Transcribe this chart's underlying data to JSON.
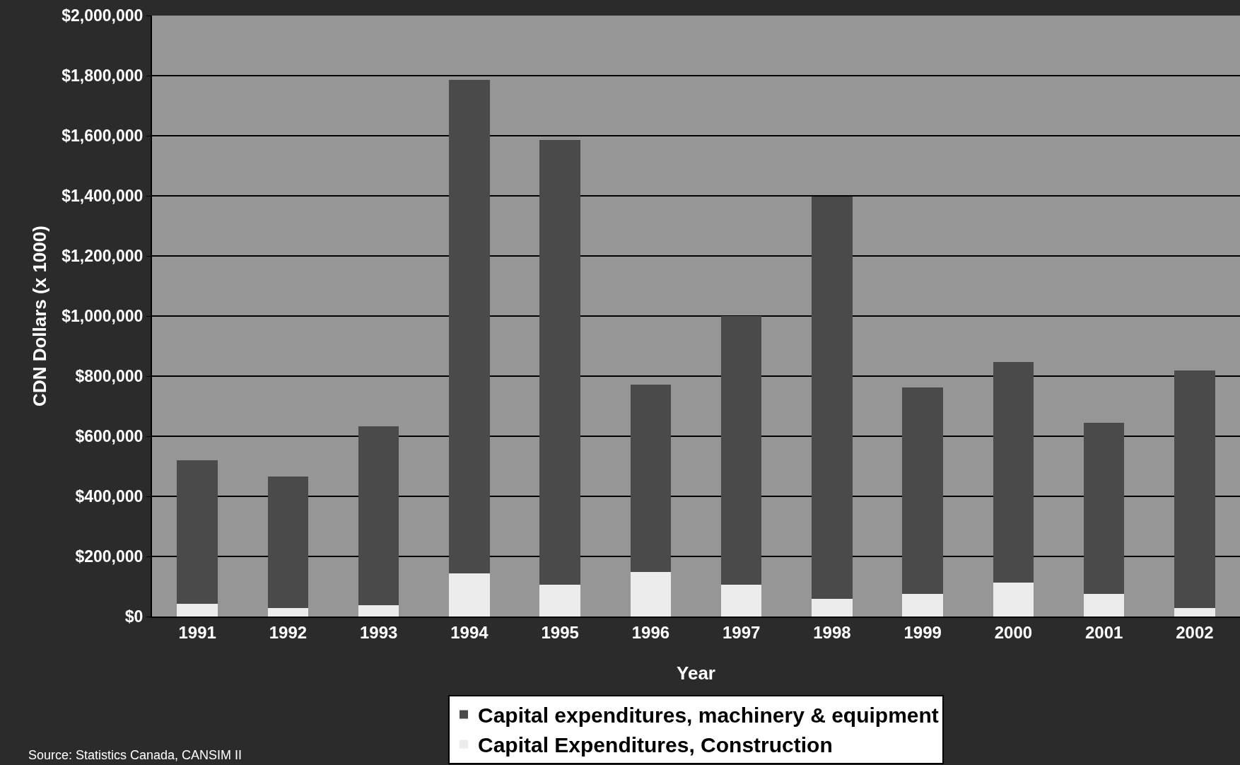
{
  "chart_data": {
    "type": "bar",
    "stacked": true,
    "xlabel": "Year",
    "ylabel": "CDN Dollars (x 1000)",
    "categories": [
      "1991",
      "1992",
      "1993",
      "1994",
      "1995",
      "1996",
      "1997",
      "1998",
      "1999",
      "2000",
      "2001",
      "2002"
    ],
    "series": [
      {
        "name": "Capital Expenditures, Construction",
        "color": "#ececec",
        "values": [
          42000,
          29000,
          37000,
          144000,
          107000,
          149000,
          105000,
          58000,
          76000,
          113000,
          76000,
          29000
        ]
      },
      {
        "name": "Capital expenditures, machinery & equipment",
        "color": "#4a4a4a",
        "values": [
          477000,
          438000,
          597000,
          1641000,
          1479000,
          622000,
          894000,
          1339000,
          687000,
          734000,
          569000,
          789000
        ]
      }
    ],
    "ylim": [
      0,
      2000000
    ],
    "yticks": [
      {
        "value": 0,
        "label": "$0"
      },
      {
        "value": 200000,
        "label": "$200,000"
      },
      {
        "value": 400000,
        "label": "$400,000"
      },
      {
        "value": 600000,
        "label": "$600,000"
      },
      {
        "value": 800000,
        "label": "$800,000"
      },
      {
        "value": 1000000,
        "label": "$1,000,000"
      },
      {
        "value": 1200000,
        "label": "$1,200,000"
      },
      {
        "value": 1400000,
        "label": "$1,400,000"
      },
      {
        "value": 1600000,
        "label": "$1,600,000"
      },
      {
        "value": 1800000,
        "label": "$1,800,000"
      },
      {
        "value": 2000000,
        "label": "$2,000,000"
      }
    ],
    "grid": "y",
    "legend": "bottom",
    "annotations": [
      "Source: Statistics Canada, CANSIM II"
    ]
  }
}
